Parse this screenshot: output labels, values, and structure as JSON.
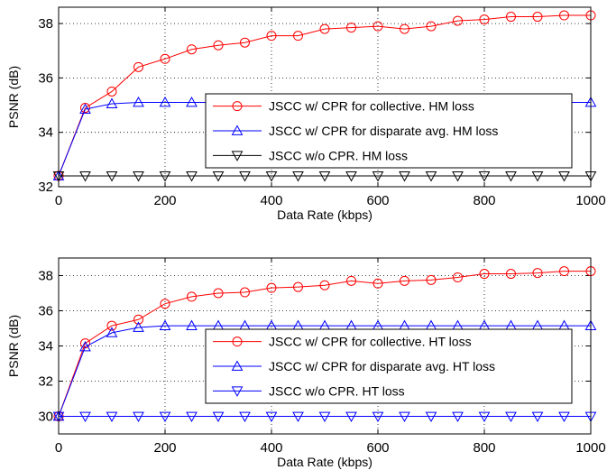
{
  "chart_data": [
    {
      "type": "line",
      "xlabel": "Data Rate (kbps)",
      "ylabel": "PSNR (dB)",
      "xlim": [
        0,
        1000
      ],
      "ylim": [
        32,
        38.6
      ],
      "xticks": [
        0,
        200,
        400,
        600,
        800,
        1000
      ],
      "yticks": [
        32,
        34,
        36,
        38
      ],
      "grid": true,
      "legend": "right",
      "x": [
        0,
        50,
        100,
        150,
        200,
        250,
        300,
        350,
        400,
        450,
        500,
        550,
        600,
        650,
        700,
        750,
        800,
        850,
        900,
        950,
        1000
      ],
      "series": [
        {
          "name": "JSCC w/ CPR for collective. HM loss",
          "color": "#ff0000",
          "marker": "circle",
          "values": [
            32.4,
            34.9,
            35.5,
            36.4,
            36.7,
            37.05,
            37.2,
            37.3,
            37.55,
            37.55,
            37.8,
            37.85,
            37.9,
            37.8,
            37.9,
            38.1,
            38.15,
            38.25,
            38.25,
            38.3,
            38.3
          ]
        },
        {
          "name": "JSCC w/ CPR for disparate avg. HM loss",
          "color": "#0000ff",
          "marker": "triangle-up",
          "values": [
            32.4,
            34.85,
            35.05,
            35.1,
            35.1,
            35.1,
            35.1,
            35.1,
            35.1,
            35.1,
            35.1,
            35.1,
            35.1,
            35.1,
            35.1,
            35.1,
            35.1,
            35.1,
            35.1,
            35.1,
            35.1
          ]
        },
        {
          "name": "JSCC w/o CPR. HM loss",
          "color": "#000000",
          "marker": "triangle-down",
          "values": [
            32.4,
            32.4,
            32.4,
            32.4,
            32.4,
            32.4,
            32.4,
            32.4,
            32.4,
            32.4,
            32.4,
            32.4,
            32.4,
            32.4,
            32.4,
            32.4,
            32.4,
            32.4,
            32.4,
            32.4,
            32.4
          ]
        }
      ]
    },
    {
      "type": "line",
      "xlabel": "Data Rate (kbps)",
      "ylabel": "PSNR (dB)",
      "xlim": [
        0,
        1000
      ],
      "ylim": [
        29,
        39
      ],
      "xticks": [
        0,
        200,
        400,
        600,
        800,
        1000
      ],
      "yticks": [
        30,
        32,
        34,
        36,
        38
      ],
      "grid": true,
      "legend": "right",
      "x": [
        0,
        50,
        100,
        150,
        200,
        250,
        300,
        350,
        400,
        450,
        500,
        550,
        600,
        650,
        700,
        750,
        800,
        850,
        900,
        950,
        1000
      ],
      "series": [
        {
          "name": "JSCC w/ CPR for collective. HT loss",
          "color": "#ff0000",
          "marker": "circle",
          "values": [
            30.0,
            34.15,
            35.15,
            35.5,
            36.4,
            36.8,
            37.0,
            37.05,
            37.3,
            37.35,
            37.45,
            37.7,
            37.55,
            37.7,
            37.75,
            37.9,
            38.1,
            38.1,
            38.15,
            38.25,
            38.25
          ]
        },
        {
          "name": "JSCC w/ CPR for disparate avg. HT loss",
          "color": "#0000ff",
          "marker": "triangle-up",
          "values": [
            30.0,
            33.95,
            34.75,
            35.05,
            35.15,
            35.15,
            35.15,
            35.15,
            35.15,
            35.15,
            35.15,
            35.15,
            35.15,
            35.15,
            35.15,
            35.15,
            35.15,
            35.15,
            35.15,
            35.15,
            35.15
          ]
        },
        {
          "name": "JSCC w/o CPR. HT loss",
          "color": "#0000ff",
          "marker": "triangle-down",
          "values": [
            30.0,
            30.0,
            30.0,
            30.0,
            30.0,
            30.0,
            30.0,
            30.0,
            30.0,
            30.0,
            30.0,
            30.0,
            30.0,
            30.0,
            30.0,
            30.0,
            30.0,
            30.0,
            30.0,
            30.0,
            30.0
          ]
        }
      ]
    }
  ]
}
